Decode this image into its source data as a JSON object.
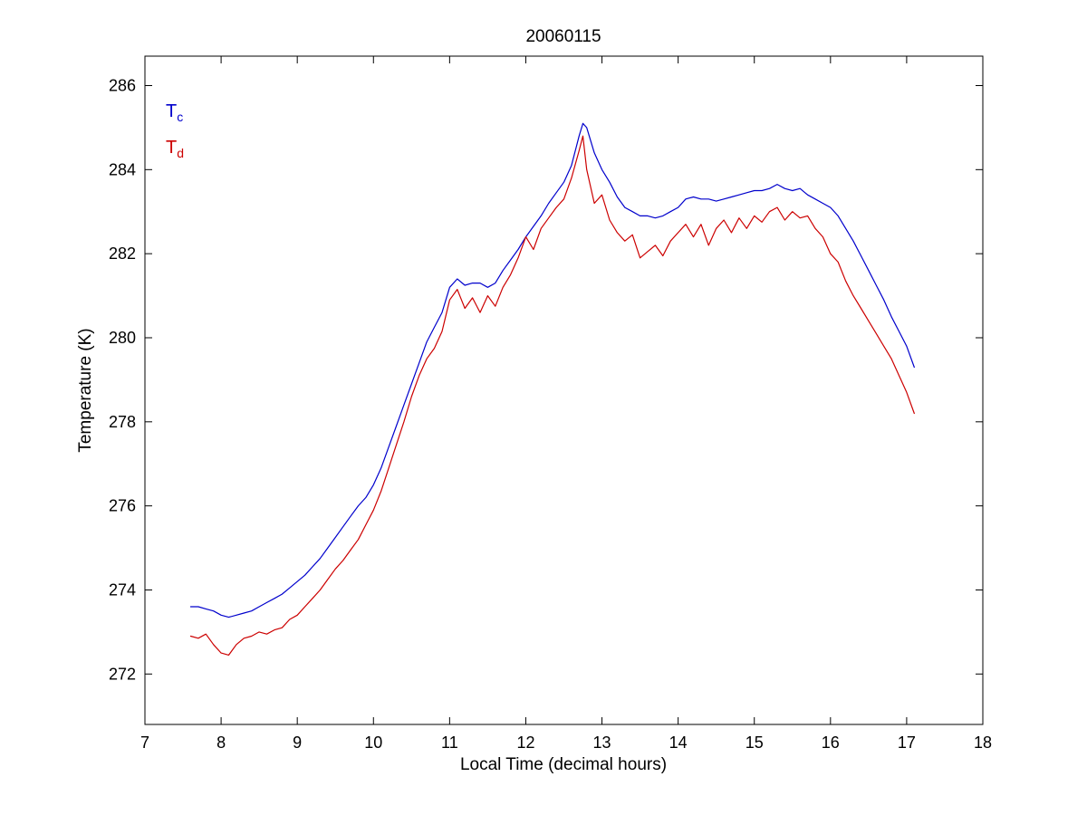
{
  "page": {
    "background": "#ffffff"
  },
  "chart_data": {
    "type": "line",
    "title": "20060115",
    "xlabel": "Local Time (decimal hours)",
    "ylabel": "Temperature (K)",
    "xlim": [
      7,
      18
    ],
    "ylim": [
      270.8,
      286.7
    ],
    "xticks": [
      7,
      8,
      9,
      10,
      11,
      12,
      13,
      14,
      15,
      16,
      17,
      18
    ],
    "yticks": [
      272,
      274,
      276,
      278,
      280,
      282,
      284,
      286
    ],
    "grid": false,
    "legend_position": "top-left-inside-text-annotations",
    "x": [
      7.6,
      7.7,
      7.8,
      7.9,
      8.0,
      8.1,
      8.2,
      8.3,
      8.4,
      8.5,
      8.6,
      8.7,
      8.8,
      8.9,
      9.0,
      9.1,
      9.2,
      9.3,
      9.4,
      9.5,
      9.6,
      9.7,
      9.8,
      9.9,
      10.0,
      10.1,
      10.2,
      10.3,
      10.4,
      10.5,
      10.6,
      10.7,
      10.8,
      10.9,
      11.0,
      11.1,
      11.2,
      11.3,
      11.4,
      11.5,
      11.6,
      11.7,
      11.8,
      11.9,
      12.0,
      12.1,
      12.2,
      12.3,
      12.4,
      12.5,
      12.6,
      12.7,
      12.75,
      12.8,
      12.9,
      13.0,
      13.1,
      13.2,
      13.3,
      13.4,
      13.5,
      13.6,
      13.7,
      13.8,
      13.9,
      14.0,
      14.1,
      14.2,
      14.3,
      14.4,
      14.5,
      14.6,
      14.7,
      14.8,
      14.9,
      15.0,
      15.1,
      15.2,
      15.3,
      15.4,
      15.5,
      15.6,
      15.7,
      15.8,
      15.9,
      16.0,
      16.1,
      16.2,
      16.3,
      16.4,
      16.5,
      16.6,
      16.7,
      16.8,
      16.9,
      17.0,
      17.1
    ],
    "series": [
      {
        "name": "T_c",
        "label_main": "T",
        "label_sub": "c",
        "color": "#0000cc",
        "values": [
          273.6,
          273.6,
          273.55,
          273.5,
          273.4,
          273.35,
          273.4,
          273.45,
          273.5,
          273.6,
          273.7,
          273.8,
          273.9,
          274.05,
          274.2,
          274.35,
          274.55,
          274.75,
          275.0,
          275.25,
          275.5,
          275.75,
          276.0,
          276.2,
          276.5,
          276.9,
          277.4,
          277.9,
          278.4,
          278.9,
          279.4,
          279.9,
          280.25,
          280.6,
          281.2,
          281.4,
          281.25,
          281.3,
          281.3,
          281.2,
          281.3,
          281.6,
          281.85,
          282.1,
          282.4,
          282.65,
          282.9,
          283.2,
          283.45,
          283.7,
          284.1,
          284.8,
          285.1,
          285.0,
          284.4,
          284.0,
          283.7,
          283.35,
          283.1,
          283.0,
          282.9,
          282.9,
          282.85,
          282.9,
          283.0,
          283.1,
          283.3,
          283.35,
          283.3,
          283.3,
          283.25,
          283.3,
          283.35,
          283.4,
          283.45,
          283.5,
          283.5,
          283.55,
          283.65,
          283.55,
          283.5,
          283.55,
          283.4,
          283.3,
          283.2,
          283.1,
          282.9,
          282.6,
          282.3,
          281.95,
          281.6,
          281.25,
          280.9,
          280.5,
          280.15,
          279.8,
          279.3
        ]
      },
      {
        "name": "T_d",
        "label_main": "T",
        "label_sub": "d",
        "color": "#cc0000",
        "values": [
          272.9,
          272.85,
          272.95,
          272.7,
          272.5,
          272.45,
          272.7,
          272.85,
          272.9,
          273.0,
          272.95,
          273.05,
          273.1,
          273.3,
          273.4,
          273.6,
          273.8,
          274.0,
          274.25,
          274.5,
          274.7,
          274.95,
          275.2,
          275.55,
          275.9,
          276.35,
          276.9,
          277.45,
          278.0,
          278.6,
          279.1,
          279.5,
          279.75,
          280.15,
          280.9,
          281.15,
          280.7,
          280.95,
          280.6,
          281.0,
          280.75,
          281.2,
          281.5,
          281.9,
          282.4,
          282.1,
          282.6,
          282.85,
          283.1,
          283.3,
          283.8,
          284.45,
          284.8,
          284.0,
          283.2,
          283.4,
          282.8,
          282.5,
          282.3,
          282.45,
          281.9,
          282.05,
          282.2,
          281.95,
          282.3,
          282.5,
          282.7,
          282.4,
          282.7,
          282.2,
          282.6,
          282.8,
          282.5,
          282.85,
          282.6,
          282.9,
          282.75,
          283.0,
          283.1,
          282.8,
          283.0,
          282.85,
          282.9,
          282.6,
          282.4,
          282.0,
          281.8,
          281.35,
          281.0,
          280.7,
          280.4,
          280.1,
          279.8,
          279.5,
          279.1,
          278.7,
          278.2
        ]
      }
    ]
  }
}
